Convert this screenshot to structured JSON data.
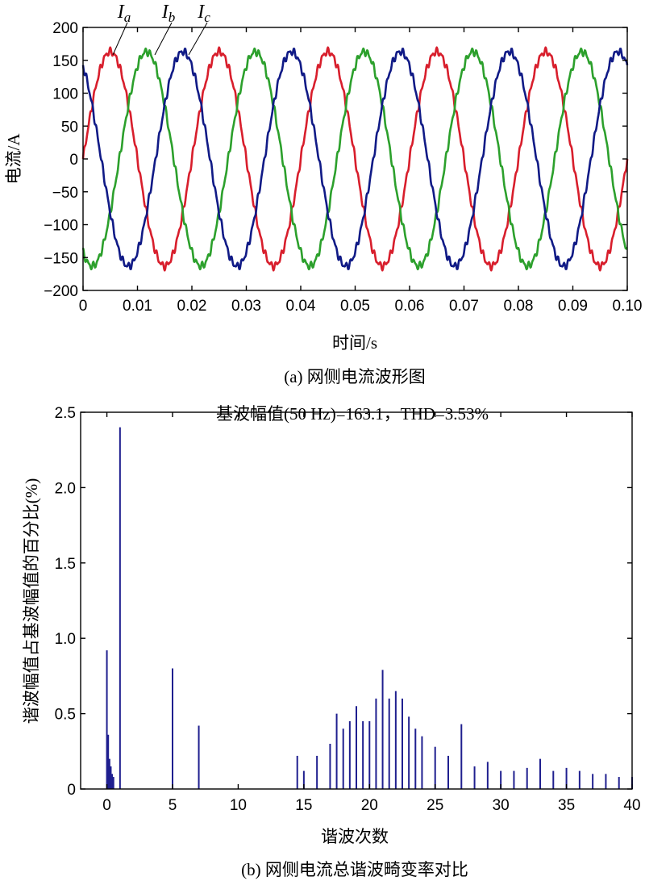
{
  "chart_data": [
    {
      "type": "line",
      "xlabel": "时间/s",
      "ylabel": "电流/A",
      "caption": "(a) 网侧电流波形图",
      "xlim": [
        0,
        0.1
      ],
      "ylim": [
        -200,
        200
      ],
      "xticks": [
        "0",
        "0.01",
        "0.02",
        "0.03",
        "0.04",
        "0.05",
        "0.06",
        "0.07",
        "0.08",
        "0.09",
        "0.10"
      ],
      "yticks": [
        "200",
        "150",
        "100",
        "50",
        "0",
        "−50",
        "−100",
        "−150",
        "−200"
      ],
      "frequency_hz": 50,
      "amplitude": 163.1,
      "series": [
        {
          "name": "a",
          "phase_deg": 0,
          "color": "#d81e2c"
        },
        {
          "name": "b",
          "phase_deg": -120,
          "color": "#2ca02c"
        },
        {
          "name": "c",
          "phase_deg": 120,
          "color": "#101a86"
        }
      ],
      "grid": false
    },
    {
      "type": "bar",
      "title": "基波幅值(50 Hz)=163.1，THD=3.53%",
      "xlabel": "谐波次数",
      "ylabel": "谐波幅值占基波幅值的百分比(%)",
      "caption": "(b) 网侧电流总谐波畸变率对比",
      "xlim": [
        -2,
        40
      ],
      "ylim": [
        0,
        2.5
      ],
      "xticks": [
        "0",
        "5",
        "10",
        "15",
        "20",
        "25",
        "30",
        "35",
        "40"
      ],
      "yticks": [
        "2.5",
        "2.0",
        "1.5",
        "1.0",
        "0.5",
        "0"
      ],
      "color": "#1f1f8f",
      "grid": false,
      "x": [
        0,
        0.1,
        0.2,
        0.3,
        0.4,
        0.5,
        1,
        5,
        7,
        14.5,
        15,
        16,
        17,
        17.5,
        18,
        18.5,
        19,
        19.5,
        20,
        20.5,
        21,
        21.5,
        22,
        22.5,
        23,
        23.5,
        24,
        25,
        26,
        27,
        28,
        29,
        30,
        31,
        32,
        33,
        34,
        35,
        36,
        37,
        38,
        39,
        40
      ],
      "values": [
        0.92,
        0.36,
        0.2,
        0.15,
        0.1,
        0.08,
        2.4,
        0.8,
        0.42,
        0.22,
        0.12,
        0.22,
        0.3,
        0.5,
        0.4,
        0.45,
        0.55,
        0.45,
        0.45,
        0.6,
        0.79,
        0.6,
        0.65,
        0.6,
        0.48,
        0.4,
        0.35,
        0.28,
        0.22,
        0.43,
        0.15,
        0.18,
        0.12,
        0.12,
        0.14,
        0.2,
        0.12,
        0.14,
        0.12,
        0.1,
        0.1,
        0.08,
        0.08
      ]
    }
  ]
}
